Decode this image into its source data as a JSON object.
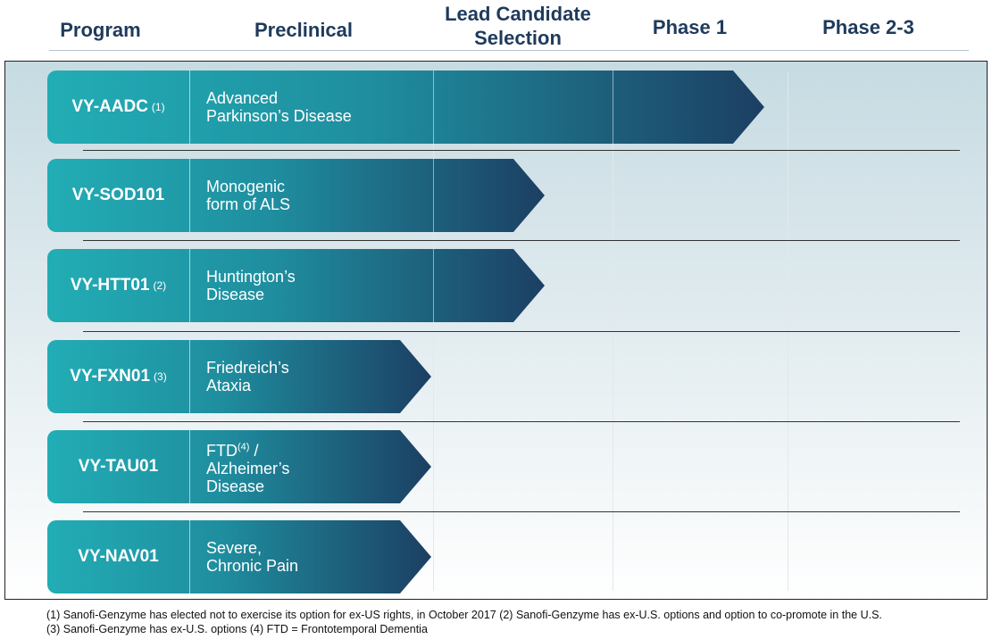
{
  "headers": {
    "program": "Program",
    "preclinical": "Preclinical",
    "lead_line1": "Lead Candidate",
    "lead_line2": "Selection",
    "phase1": "Phase 1",
    "phase23": "Phase 2-3"
  },
  "colors": {
    "bar_start": "#22adb5",
    "bar_end": "#1c3f63",
    "header_text": "#1f3a5c"
  },
  "programs": [
    {
      "name": "VY-AADC",
      "note": "(1)",
      "indication": [
        "Advanced",
        "Parkinson’s Disease"
      ],
      "stage": "Phase 1"
    },
    {
      "name": "VY-SOD101",
      "note": "",
      "indication": [
        "Monogenic",
        "form of ALS"
      ],
      "stage": "Lead Candidate Selection"
    },
    {
      "name": "VY-HTT01",
      "note": "(2)",
      "indication": [
        "Huntington’s",
        "Disease"
      ],
      "stage": "Lead Candidate Selection"
    },
    {
      "name": "VY-FXN01",
      "note": "(3)",
      "indication": [
        "Friedreich’s",
        "Ataxia"
      ],
      "stage": "Preclinical"
    },
    {
      "name": "VY-TAU01",
      "note": "",
      "indication": [
        "FTD",
        "/",
        "Alzheimer’s",
        "Disease"
      ],
      "indication_note": "(4)",
      "stage": "Preclinical"
    },
    {
      "name": "VY-NAV01",
      "note": "",
      "indication": [
        "Severe,",
        "Chronic Pain"
      ],
      "stage": "Preclinical"
    }
  ],
  "footnotes": [
    "(1) Sanofi-Genzyme has elected not to exercise its option for ex-US rights, in October 2017 (2) Sanofi-Genzyme has ex-U.S. options and option to co-promote in the U.S.",
    "(3) Sanofi-Genzyme has ex-U.S. options (4) FTD = Frontotemporal Dementia"
  ]
}
